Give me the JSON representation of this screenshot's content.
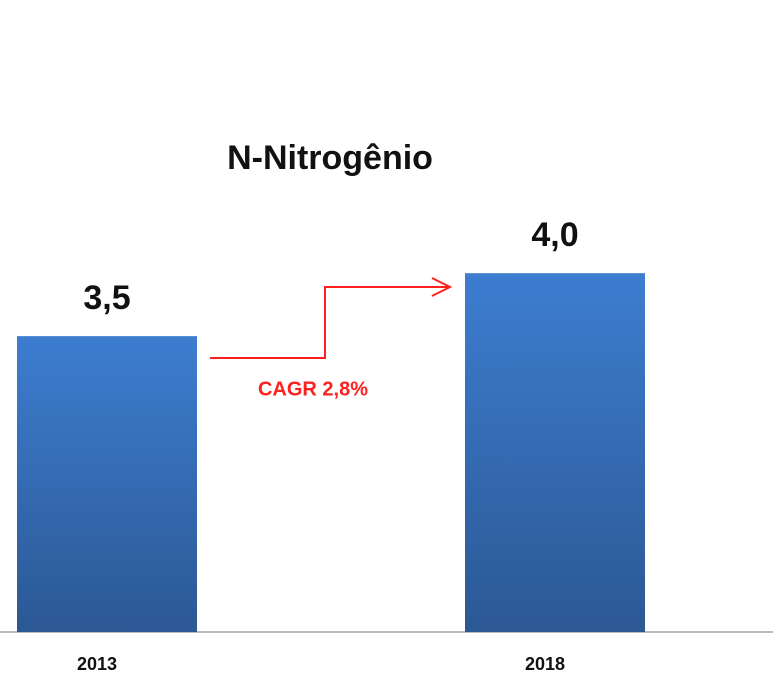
{
  "chart_data": {
    "type": "bar",
    "title": "N-Nitrogênio",
    "categories": [
      "2013",
      "2018"
    ],
    "values": [
      3.5,
      4.0
    ],
    "value_labels": [
      "3,5",
      "4,0"
    ],
    "color": "#3d7dd0",
    "ylim": [
      1.15,
      6.17
    ],
    "annotation": "CAGR  2,8%"
  }
}
